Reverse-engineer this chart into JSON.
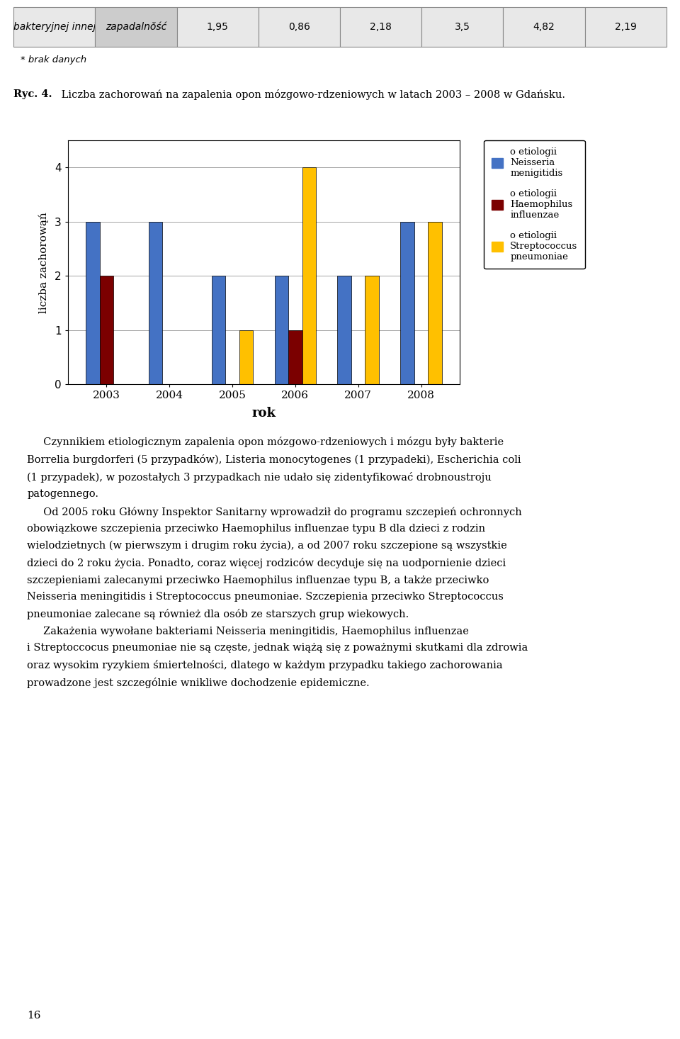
{
  "years": [
    "2003",
    "2004",
    "2005",
    "2006",
    "2007",
    "2008"
  ],
  "series": {
    "neisseria": [
      3,
      3,
      2,
      2,
      2,
      3
    ],
    "haemophilus": [
      2,
      0,
      0,
      1,
      0,
      0
    ],
    "streptococcus": [
      0,
      0,
      1,
      4,
      2,
      3
    ]
  },
  "colors": {
    "neisseria": "#4472C4",
    "haemophilus": "#7B0000",
    "streptococcus": "#FFC000"
  },
  "legend_labels": {
    "neisseria": "o etiologii\nNeisseria\nmenigitidis",
    "haemophilus": "o etiologii\nHaemophilus\ninfluenzae",
    "streptococcus": "o etiologii\nStreptococcus\npneumoniae"
  },
  "xlabel": "rok",
  "ylabel": "liczba zachorowąń",
  "ylim": [
    0,
    4.5
  ],
  "yticks": [
    0,
    1,
    2,
    3,
    4
  ],
  "caption_bold": "Ryc. 4.",
  "caption_normal": " Liczba zachorowań na zapalenia opon mózgowo-rdzeniowych w latach 2003 – 2008 w Gdańsku.",
  "table_row": [
    "bakteryjnej innej",
    "zapadalnŏść",
    "1,95",
    "0,86",
    "2,18",
    "3,5",
    "4,82",
    "2,19"
  ],
  "footnote": "* brak danych",
  "bar_width": 0.22,
  "figsize": [
    9.6,
    14.66
  ],
  "dpi": 100,
  "body_paragraphs": [
    {
      "indent": true,
      "text": "Czynnikiem etiologicznym zapalenia opon mózgowo-rdzeniowych i mózgu były bakterie",
      "italic_parts": []
    }
  ]
}
